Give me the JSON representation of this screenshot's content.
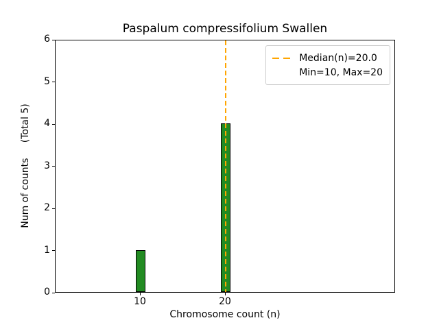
{
  "chart_data": {
    "type": "bar",
    "title": "Paspalum compressifolium Swallen",
    "xlabel": "Chromosome count (n)",
    "ylabel": "Num of counts     (Total 5)",
    "total_counts": 5,
    "bars": [
      {
        "x": 10,
        "count": 1
      },
      {
        "x": 20,
        "count": 4
      }
    ],
    "bar_width": 1.2,
    "xlim": [
      0,
      40
    ],
    "ylim": [
      0,
      6
    ],
    "xticks": [
      10,
      20
    ],
    "yticks": [
      0,
      1,
      2,
      3,
      4,
      5,
      6
    ],
    "median": {
      "x": 20,
      "value": 20.0
    },
    "min": 10,
    "max": 20,
    "legend": {
      "position": "upper-right",
      "entries": [
        {
          "sample": "dashed-line",
          "label": "Median(n)=20.0"
        },
        {
          "sample": "none",
          "label": "Min=10, Max=20"
        }
      ]
    },
    "colors": {
      "bar_fill": "#228b22",
      "bar_edge": "#000000",
      "median_line": "#ffa500",
      "axes_edge": "#000000",
      "background": "#ffffff"
    },
    "grid": false
  }
}
